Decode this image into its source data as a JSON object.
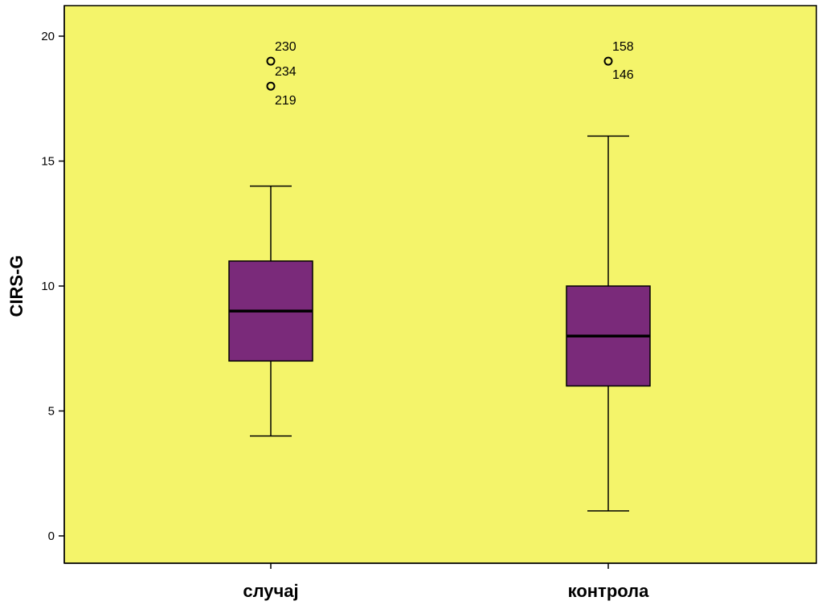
{
  "chart_data": {
    "type": "boxplot",
    "title": "",
    "ylabel": "CIRS-G",
    "xlabel": "",
    "ylim": [
      0,
      20
    ],
    "yticks": [
      0,
      5,
      10,
      15,
      20
    ],
    "grid": false,
    "colors": {
      "plot_background": "#f4f46a",
      "box_fill": "#7a2a7a",
      "line": "#000000"
    },
    "categories": [
      "случај",
      "контрола"
    ],
    "boxes": [
      {
        "category": "случај",
        "whisker_low": 4,
        "q1": 7,
        "median": 9,
        "q3": 11,
        "whisker_high": 14,
        "outliers": [
          {
            "value": 19,
            "label": "230"
          },
          {
            "value": 19,
            "label": "234"
          },
          {
            "value": 18,
            "label": "219"
          }
        ]
      },
      {
        "category": "контрола",
        "whisker_low": 1,
        "q1": 6,
        "median": 8,
        "q3": 10,
        "whisker_high": 16,
        "outliers": [
          {
            "value": 19,
            "label": "158"
          },
          {
            "value": 19,
            "label": "146"
          }
        ]
      }
    ]
  }
}
